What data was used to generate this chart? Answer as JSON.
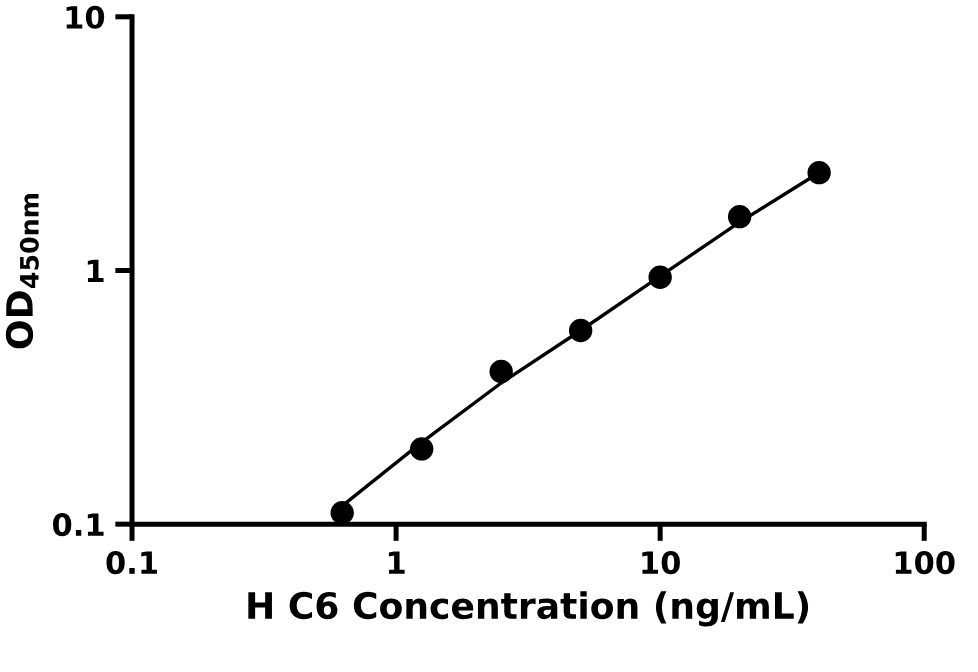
{
  "chart_data": {
    "type": "scatter",
    "xlabel": "H C6 Concentration (ng/mL)",
    "ylabel": "OD$_{450nm}$",
    "log": "xy",
    "xlim": [
      0.1,
      100
    ],
    "xticks": [
      0.1,
      1,
      10,
      100
    ],
    "ylim": [
      0.1,
      10
    ],
    "yticks": [
      0.1,
      1,
      10
    ],
    "grid": false,
    "series": [
      {
        "marker": "circle",
        "color": "#000000",
        "x": [
          0.625,
          1.25,
          2.5,
          5,
          10,
          20,
          40
        ],
        "values": [
          0.111,
          0.198,
          0.4,
          0.58,
          0.94,
          1.63,
          2.43
        ]
      },
      {
        "type": "line",
        "color": "#000000",
        "line_style": "solid",
        "marker": "none",
        "x": [
          0.625,
          1.25,
          2.5,
          5,
          10,
          20,
          40
        ],
        "values": [
          0.118,
          0.21,
          0.36,
          0.58,
          0.95,
          1.55,
          2.43
        ]
      }
    ]
  }
}
